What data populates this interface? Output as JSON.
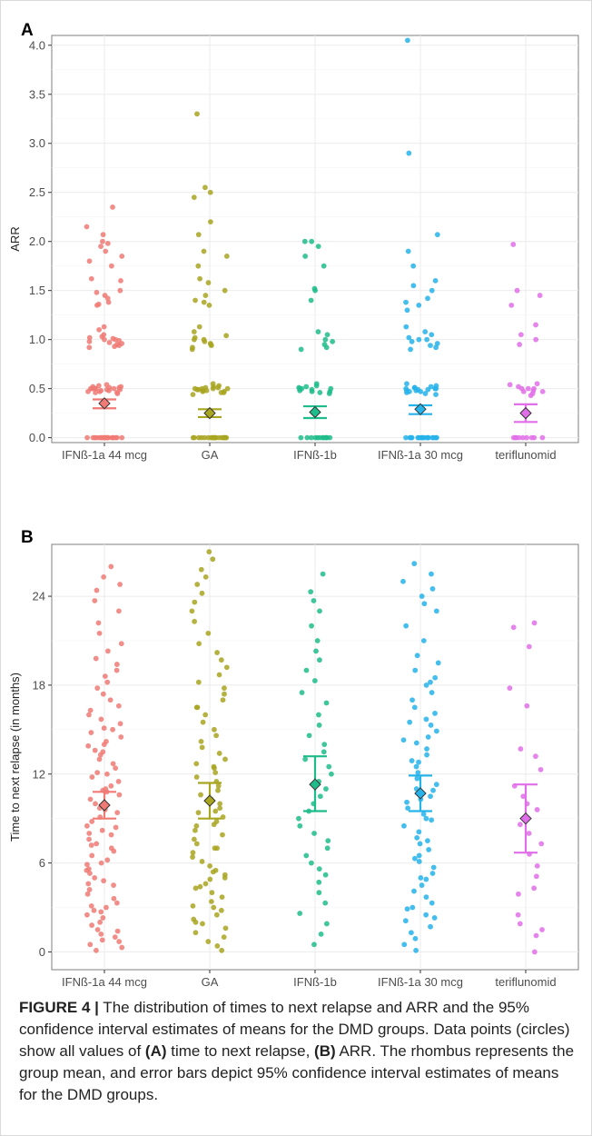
{
  "caption": {
    "label": "FIGURE 4 |",
    "text_1": " The distribution of times to next relapse and ARR and the 95% confidence interval estimates of means for the DMD groups. Data points (circles) show all values of ",
    "ref_a": "(A)",
    "text_2": " time to next relapse, ",
    "ref_b": "(B)",
    "text_3": " ARR. The rhombus represents the group mean, and error bars depict 95% confidence interval estimates of means for the DMD groups."
  },
  "colors": [
    "#f07a74",
    "#a8a521",
    "#1ebc8a",
    "#26b3ea",
    "#e06ee8"
  ],
  "chart_data": [
    {
      "panel": "A",
      "type": "scatter",
      "ylabel": "ARR",
      "xlabel": "",
      "ylim": [
        -0.05,
        4.1
      ],
      "yticks": [
        0.0,
        0.5,
        1.0,
        1.5,
        2.0,
        2.5,
        3.0,
        3.5,
        4.0
      ],
      "ytick_labels": [
        "0.0",
        "0.5",
        "1.0",
        "1.5",
        "2.0",
        "2.5",
        "3.0",
        "3.5",
        "4.0"
      ],
      "categories": [
        "IFNß-1a 44 mcg",
        "GA",
        "IFNß-1b",
        "IFNß-1a 30 mcg",
        "teriflunomid"
      ],
      "grid": true,
      "summary": [
        {
          "mean": 0.35,
          "ci": [
            0.3,
            0.39
          ]
        },
        {
          "mean": 0.25,
          "ci": [
            0.21,
            0.29
          ]
        },
        {
          "mean": 0.26,
          "ci": [
            0.2,
            0.32
          ]
        },
        {
          "mean": 0.29,
          "ci": [
            0.24,
            0.33
          ]
        },
        {
          "mean": 0.25,
          "ci": [
            0.16,
            0.34
          ]
        }
      ],
      "series": [
        {
          "values": [
            0,
            0,
            0,
            0,
            0,
            0,
            0,
            0,
            0,
            0,
            0,
            0,
            0,
            0,
            0,
            0,
            0,
            0,
            0,
            0,
            0.45,
            0.46,
            0.47,
            0.48,
            0.49,
            0.5,
            0.5,
            0.5,
            0.51,
            0.52,
            0.53,
            0.54,
            0.47,
            0.48,
            0.49,
            0.5,
            0.51,
            0.52,
            0.46,
            0.5,
            0.93,
            0.95,
            0.97,
            0.98,
            1.0,
            1.0,
            1.01,
            1.02,
            1.03,
            0.96,
            0.99,
            1.05,
            1.1,
            1.13,
            0.92,
            0.94,
            1.35,
            1.36,
            1.38,
            1.42,
            1.45,
            1.48,
            1.5,
            1.6,
            1.62,
            1.75,
            1.8,
            1.85,
            1.9,
            1.95,
            1.98,
            2.0,
            2.07,
            2.15,
            2.35
          ]
        },
        {
          "values": [
            0,
            0,
            0,
            0,
            0,
            0,
            0,
            0,
            0,
            0,
            0,
            0,
            0,
            0,
            0,
            0,
            0,
            0,
            0,
            0,
            0.44,
            0.46,
            0.47,
            0.48,
            0.49,
            0.5,
            0.5,
            0.51,
            0.52,
            0.53,
            0.55,
            0.47,
            0.49,
            0.5,
            0.51,
            0.46,
            0.48,
            0.5,
            0.9,
            0.92,
            0.94,
            0.96,
            0.98,
            1.0,
            1.0,
            1.02,
            1.04,
            1.08,
            1.13,
            0.95,
            1.35,
            1.38,
            1.4,
            1.45,
            1.5,
            1.58,
            1.62,
            1.75,
            1.85,
            1.9,
            2.07,
            2.2,
            2.45,
            2.5,
            2.55,
            3.3
          ]
        },
        {
          "values": [
            0,
            0,
            0,
            0,
            0,
            0,
            0,
            0,
            0,
            0,
            0,
            0,
            0.45,
            0.46,
            0.47,
            0.48,
            0.5,
            0.5,
            0.51,
            0.52,
            0.53,
            0.55,
            0.47,
            0.49,
            0.5,
            0.9,
            0.92,
            0.95,
            0.98,
            1.0,
            1.05,
            1.08,
            1.4,
            1.5,
            1.52,
            1.75,
            1.85,
            1.95,
            2.0,
            2.0
          ]
        },
        {
          "values": [
            0,
            0,
            0,
            0,
            0,
            0,
            0,
            0,
            0,
            0,
            0,
            0,
            0,
            0,
            0,
            0,
            0,
            0,
            0.44,
            0.45,
            0.46,
            0.47,
            0.48,
            0.49,
            0.5,
            0.5,
            0.51,
            0.52,
            0.53,
            0.55,
            0.47,
            0.49,
            0.5,
            0.51,
            0.48,
            0.9,
            0.92,
            0.94,
            0.96,
            0.98,
            1.0,
            1.0,
            1.02,
            1.05,
            1.08,
            1.13,
            1.3,
            1.35,
            1.38,
            1.42,
            1.5,
            1.55,
            1.6,
            1.75,
            1.9,
            2.07,
            2.9,
            4.05
          ]
        },
        {
          "values": [
            0,
            0,
            0,
            0,
            0,
            0,
            0,
            0,
            0,
            0.43,
            0.45,
            0.47,
            0.48,
            0.5,
            0.5,
            0.52,
            0.54,
            0.55,
            0.47,
            0.5,
            0.95,
            1.0,
            1.05,
            1.15,
            1.35,
            1.45,
            1.5,
            1.97
          ]
        }
      ]
    },
    {
      "panel": "B",
      "type": "scatter",
      "ylabel": "Time to next relapse (in months)",
      "xlabel": "",
      "ylim": [
        -1.2,
        27.5
      ],
      "yticks": [
        0,
        6,
        12,
        18,
        24
      ],
      "ytick_labels": [
        "0",
        "6",
        "12",
        "18",
        "24"
      ],
      "categories": [
        "IFNß-1a 44 mcg",
        "GA",
        "IFNß-1b",
        "IFNß-1a 30 mcg",
        "teriflunomid"
      ],
      "grid": true,
      "summary": [
        {
          "mean": 9.9,
          "ci": [
            9.0,
            10.8
          ]
        },
        {
          "mean": 10.2,
          "ci": [
            9.0,
            11.4
          ]
        },
        {
          "mean": 11.3,
          "ci": [
            9.5,
            13.2
          ]
        },
        {
          "mean": 10.7,
          "ci": [
            9.5,
            11.9
          ]
        },
        {
          "mean": 9.0,
          "ci": [
            6.7,
            11.3
          ]
        }
      ],
      "series": [
        {
          "values": [
            0.1,
            0.3,
            0.5,
            0.8,
            1.0,
            1.2,
            1.5,
            1.8,
            2.0,
            2.3,
            2.5,
            2.8,
            3.0,
            3.3,
            3.6,
            3.9,
            4.2,
            4.5,
            4.8,
            5.0,
            5.3,
            5.6,
            5.9,
            6.2,
            6.5,
            6.8,
            7.0,
            7.3,
            7.6,
            7.9,
            8.2,
            8.5,
            8.8,
            9.1,
            9.4,
            9.7,
            10.0,
            10.3,
            10.6,
            10.9,
            11.2,
            11.5,
            11.8,
            12.1,
            12.4,
            12.7,
            13.0,
            13.3,
            13.6,
            13.9,
            14.2,
            14.5,
            14.8,
            15.1,
            15.4,
            15.7,
            16.0,
            16.3,
            16.6,
            17.0,
            17.4,
            17.8,
            18.2,
            18.6,
            19.0,
            19.4,
            19.8,
            20.3,
            20.8,
            21.5,
            22.2,
            23.0,
            23.7,
            24.4,
            24.8,
            25.3,
            26.0,
            1.4,
            3.1,
            4.6,
            6.0,
            7.2,
            8.4,
            9.6,
            10.8,
            12.0,
            13.5,
            15.0,
            0.7,
            2.7,
            5.5,
            8.0,
            11.0,
            14.0
          ]
        },
        {
          "values": [
            0.1,
            0.4,
            0.7,
            1.0,
            1.3,
            1.6,
            1.9,
            2.2,
            2.5,
            2.8,
            3.1,
            3.4,
            3.7,
            4.0,
            4.3,
            4.6,
            4.9,
            5.2,
            5.5,
            5.8,
            6.1,
            6.4,
            6.7,
            7.0,
            7.3,
            7.6,
            7.9,
            8.2,
            8.5,
            8.8,
            9.1,
            9.4,
            9.7,
            10.0,
            10.3,
            10.6,
            10.9,
            11.2,
            11.5,
            11.8,
            12.1,
            12.4,
            12.7,
            13.0,
            13.4,
            13.8,
            14.2,
            14.6,
            15.0,
            15.5,
            16.0,
            16.5,
            17.0,
            17.4,
            17.8,
            18.2,
            18.7,
            19.2,
            19.7,
            20.2,
            20.8,
            21.5,
            22.3,
            23.0,
            23.6,
            24.2,
            24.8,
            25.3,
            25.8,
            26.5,
            27.0,
            5.0,
            5.4,
            3.0,
            7.0,
            9.5,
            12.5,
            16.5,
            2.0,
            4.4,
            8.6
          ]
        },
        {
          "values": [
            0.5,
            1.2,
            1.9,
            2.6,
            3.3,
            4.0,
            4.7,
            5.2,
            5.6,
            6.0,
            6.5,
            7.0,
            7.5,
            8.0,
            8.5,
            9.0,
            9.5,
            10.0,
            10.5,
            11.0,
            11.5,
            12.0,
            12.5,
            13.0,
            13.5,
            14.0,
            14.6,
            15.3,
            16.0,
            16.8,
            17.5,
            18.3,
            19.0,
            19.7,
            20.3,
            21.0,
            22.0,
            23.0,
            23.7,
            24.3,
            25.5
          ]
        },
        {
          "values": [
            0.1,
            0.5,
            0.9,
            1.3,
            1.7,
            2.1,
            2.5,
            2.9,
            3.3,
            3.7,
            4.1,
            4.5,
            4.9,
            5.3,
            5.7,
            6.1,
            6.5,
            6.9,
            7.3,
            7.7,
            8.1,
            8.5,
            8.9,
            9.3,
            9.7,
            10.1,
            10.5,
            10.9,
            11.3,
            11.7,
            12.1,
            12.5,
            12.9,
            13.3,
            13.7,
            14.1,
            14.5,
            14.9,
            15.3,
            15.7,
            16.1,
            16.5,
            17.0,
            17.5,
            18.0,
            18.5,
            19.0,
            19.5,
            20.0,
            21.0,
            22.0,
            23.0,
            23.5,
            24.0,
            24.5,
            25.0,
            25.5,
            26.2,
            3.0,
            5.0,
            7.5,
            9.0,
            11.0,
            12.8,
            15.5,
            2.3,
            6.3,
            10.3,
            14.3,
            18.2
          ]
        },
        {
          "values": [
            0.0,
            1.1,
            1.5,
            1.9,
            2.5,
            3.9,
            4.3,
            5.1,
            5.8,
            6.6,
            7.3,
            8.0,
            8.6,
            9.1,
            9.6,
            10.0,
            10.5,
            11.2,
            12.3,
            13.2,
            13.7,
            16.6,
            17.8,
            20.6,
            21.9,
            22.2
          ]
        }
      ]
    }
  ]
}
